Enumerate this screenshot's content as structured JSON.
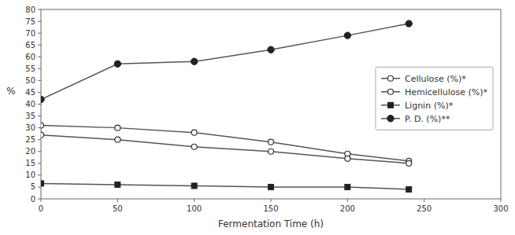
{
  "chart_data": {
    "type": "line",
    "x": [
      0,
      50,
      100,
      150,
      200,
      240
    ],
    "series": [
      {
        "name": "Cellulose (%)*",
        "color": "#555555",
        "marker": "open-circle",
        "values": [
          31,
          30,
          28,
          24,
          19,
          16
        ]
      },
      {
        "name": "Hemicellulose (%)*",
        "color": "#555555",
        "marker": "open-circle",
        "values": [
          27,
          25,
          22,
          20,
          17,
          15
        ]
      },
      {
        "name": "Lignin (%)*",
        "color": "#555555",
        "marker": "square",
        "values": [
          6.5,
          6,
          5.5,
          5,
          5,
          4
        ]
      },
      {
        "name": "P. D. (%)**",
        "color": "#555555",
        "marker": "circle",
        "values": [
          42,
          57,
          58,
          63,
          69,
          74
        ]
      }
    ],
    "xlabel": "Fermentation Time (h)",
    "ylabel": "%",
    "xlim": [
      0,
      300
    ],
    "ylim": [
      0,
      80
    ],
    "xticks": [
      0,
      50,
      100,
      150,
      200,
      250,
      300
    ],
    "yticks": [
      0,
      5,
      10,
      15,
      20,
      25,
      30,
      35,
      40,
      45,
      50,
      55,
      60,
      65,
      70,
      75,
      80
    ],
    "grid": false,
    "legend": "right"
  }
}
